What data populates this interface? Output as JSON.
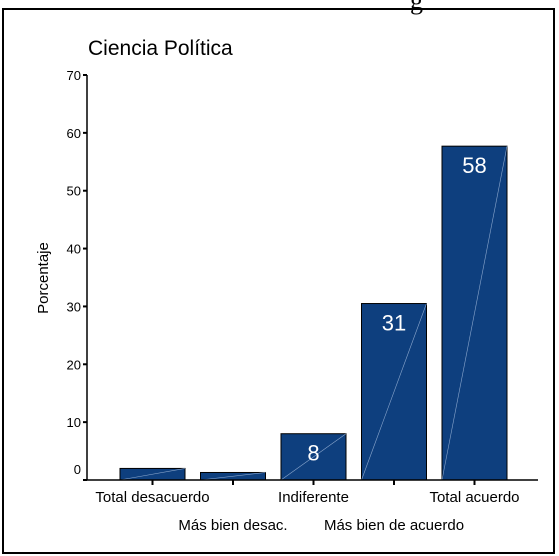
{
  "clipped_caption": "g",
  "chart_data": {
    "type": "bar",
    "title": "Ciencia Política",
    "ylabel": "Porcentaje",
    "xlabel": "",
    "ylim": [
      0,
      70
    ],
    "yticks": [
      0,
      10,
      20,
      30,
      40,
      50,
      60,
      70
    ],
    "categories": [
      "Total desacuerdo",
      "Más bien desac.",
      "Indiferente",
      "Más bien de acuerdo",
      "Total acuerdo"
    ],
    "values": [
      2,
      1.3,
      8,
      30.5,
      57.7
    ],
    "data_labels": [
      "",
      "",
      "8",
      "31",
      "58"
    ],
    "bar_color": "#0e3f7e",
    "label_color": "#ffffff",
    "grid": false
  }
}
